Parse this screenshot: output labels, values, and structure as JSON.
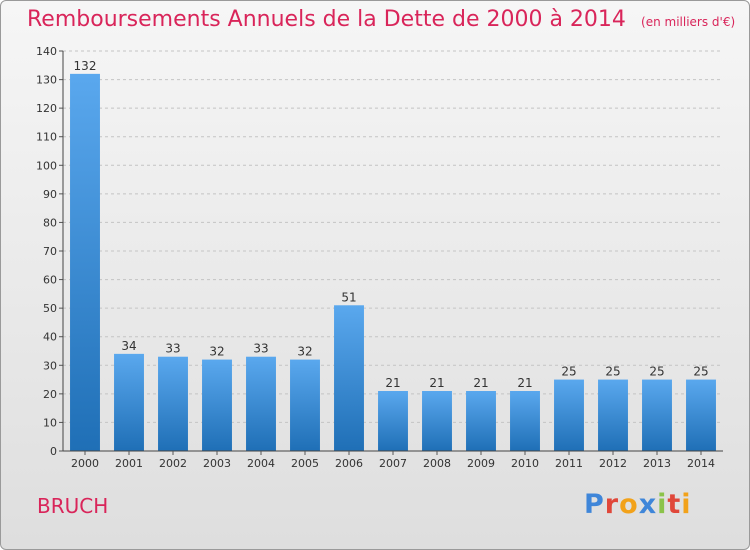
{
  "title": "Remboursements Annuels de la Dette de 2000 à 2014",
  "unit_note": "(en milliers d'€)",
  "commune": "BRUCH",
  "logo": {
    "letters": [
      {
        "char": "P",
        "color": "#3f86d9"
      },
      {
        "char": "r",
        "color": "#e0473a"
      },
      {
        "char": "o",
        "color": "#f2a21a"
      },
      {
        "char": "x",
        "color": "#3f86d9"
      },
      {
        "char": "i",
        "color": "#8bc34a"
      },
      {
        "char": "t",
        "color": "#e0473a"
      },
      {
        "char": "i",
        "color": "#f2a21a"
      }
    ]
  },
  "colors": {
    "bar_top": "#5aa8ee",
    "bar_bottom": "#1f6fb6",
    "accent": "#d9255a"
  },
  "chart_data": {
    "type": "bar",
    "categories": [
      "2000",
      "2001",
      "2002",
      "2003",
      "2004",
      "2005",
      "2006",
      "2007",
      "2008",
      "2009",
      "2010",
      "2011",
      "2012",
      "2013",
      "2014"
    ],
    "values": [
      132,
      34,
      33,
      32,
      33,
      32,
      51,
      21,
      21,
      21,
      21,
      25,
      25,
      25,
      25
    ],
    "ylim": [
      0,
      140
    ],
    "yticks": [
      0,
      10,
      20,
      30,
      40,
      50,
      60,
      70,
      80,
      90,
      100,
      110,
      120,
      130,
      140
    ],
    "grid": true,
    "title": "Remboursements Annuels de la Dette de 2000 à 2014",
    "xlabel": "",
    "ylabel": ""
  }
}
